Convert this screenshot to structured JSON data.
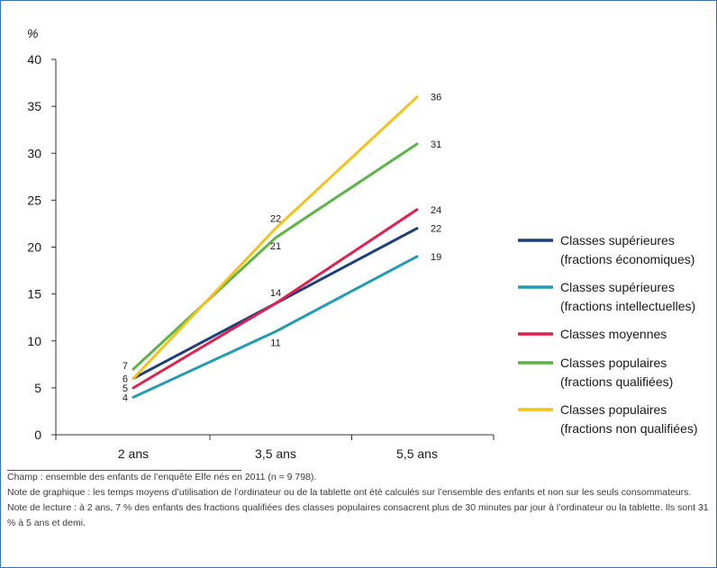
{
  "chart_data": {
    "type": "line",
    "ylabel": "%",
    "categories": [
      "2 ans",
      "3,5 ans",
      "5,5 ans"
    ],
    "ylim": [
      0,
      40
    ],
    "yticks": [
      0,
      5,
      10,
      15,
      20,
      25,
      30,
      35,
      40
    ],
    "grid": false,
    "legend_position": "right",
    "series": [
      {
        "name": "Classes supérieures (fractions économiques)",
        "name_lines": [
          "Classes supérieures",
          "(fractions économiques)"
        ],
        "color": "#1c3f7c",
        "values": [
          6,
          14,
          22
        ],
        "labels": [
          "6",
          "14",
          "22"
        ]
      },
      {
        "name": "Classes supérieures (fractions intellectuelles)",
        "name_lines": [
          "Classes supérieures",
          "(fractions intellectuelles)"
        ],
        "color": "#1f9cb3",
        "values": [
          4,
          11,
          19
        ],
        "labels": [
          "4",
          "11",
          "19"
        ]
      },
      {
        "name": "Classes moyennes",
        "name_lines": [
          "Classes moyennes"
        ],
        "color": "#e0204f",
        "values": [
          5,
          14,
          24
        ],
        "labels": [
          "5",
          "",
          "24"
        ]
      },
      {
        "name": "Classes populaires (fractions qualifiées)",
        "name_lines": [
          "Classes populaires",
          "(fractions qualifiées)"
        ],
        "color": "#5db446",
        "values": [
          7,
          21,
          31
        ],
        "labels": [
          "7",
          "21",
          "31"
        ]
      },
      {
        "name": "Classes populaires (fractions non qualifiées)",
        "name_lines": [
          "Classes populaires",
          "(fractions non qualifiées)"
        ],
        "color": "#f5c21b",
        "values": [
          6,
          22,
          36
        ],
        "labels": [
          "",
          "22",
          "36"
        ]
      }
    ]
  },
  "notes": {
    "champ": "Champ : ensemble des enfants de l’enquête Elfe nés en 2011 (n = 9 798).",
    "graphique": "Note de graphique : les temps moyens d’utilisation de l’ordinateur ou de la tablette ont été calculés sur l’ensemble des enfants et non sur les seuls consommateurs.",
    "lecture": "Note de lecture : à 2 ans, 7 % des enfants des fractions qualifiées des classes populaires consacrent plus de 30 minutes par jour à l’ordinateur ou la tablette. Ils sont 31 % à 5 ans et demi."
  }
}
